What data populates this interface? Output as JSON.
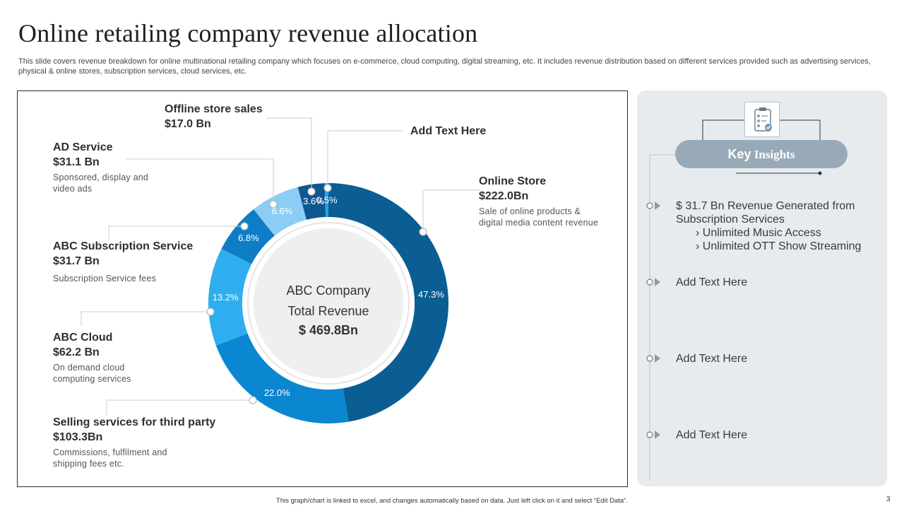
{
  "title": "Online retailing company revenue allocation",
  "subtitle": "This slide covers revenue breakdown for online multinational retailing company which focuses on e-commerce, cloud computing, digital streaming, etc. It includes revenue distribution based on different services provided such as advertising services, physical & online stores, subscription services, cloud services, etc.",
  "center": {
    "line1": "ABC Company",
    "line2": "Total Revenue",
    "value": "$ 469.8Bn"
  },
  "labels": {
    "offline": {
      "name": "Offline store sales",
      "value": "$17.0 Bn"
    },
    "addtext": {
      "name": "Add Text Here"
    },
    "ad": {
      "name": "AD Service",
      "value": "$31.1 Bn",
      "desc1": "Sponsored, display and",
      "desc2": "video ads"
    },
    "online": {
      "name": "Online Store",
      "value": "$222.0Bn",
      "desc1": "Sale of online products &",
      "desc2": "digital media content revenue"
    },
    "subscription": {
      "name": "ABC Subscription Service",
      "value": "$31.7 Bn",
      "desc1": "Subscription Service fees"
    },
    "cloud": {
      "name": "ABC Cloud",
      "value": "$62.2 Bn",
      "desc1": "On demand cloud",
      "desc2": "computing services"
    },
    "selling": {
      "name": "Selling services for third party",
      "value": "$103.3Bn",
      "desc1": "Commissions, fulfilment and",
      "desc2": "shipping fees etc."
    }
  },
  "chart_data": {
    "type": "pie",
    "variant": "donut",
    "title": "ABC Company Total Revenue $ 469.8Bn",
    "categories": [
      "Online Store",
      "Selling services for third party",
      "ABC Cloud",
      "ABC Subscription Service",
      "AD Service",
      "Offline store sales",
      "Add Text Here"
    ],
    "values": [
      47.3,
      22.0,
      13.2,
      6.8,
      6.6,
      3.6,
      0.5
    ],
    "value_labels": [
      "47.3%",
      "22.0%",
      "13.2%",
      "6.8%",
      "6.6%",
      "3.6%",
      "0.5%"
    ],
    "colors": [
      "#0a5e93",
      "#0b86d0",
      "#2eaeee",
      "#0f7dc6",
      "#8ccdf6",
      "#0e5890",
      "#2a9ee8"
    ]
  },
  "insights": {
    "badge_part1": "Key",
    "badge_part2": " Insights",
    "item1_line1": "$ 31.7 Bn Revenue Generated from",
    "item1_line2": "Subscription Services",
    "item1_sub1": "› Unlimited Music Access",
    "item1_sub2": "› Unlimited OTT Show Streaming",
    "item2": "Add Text Here",
    "item3": "Add Text Here",
    "item4": "Add Text Here"
  },
  "footer": "This graph/chart is linked to excel, and changes automatically based on data. Just left click on it and select “Edit Data”.",
  "page_number": "3",
  "colors": {
    "panel_bg": "#e8ebee",
    "badge": "#98aab8",
    "connector": "#b9c4cc"
  }
}
